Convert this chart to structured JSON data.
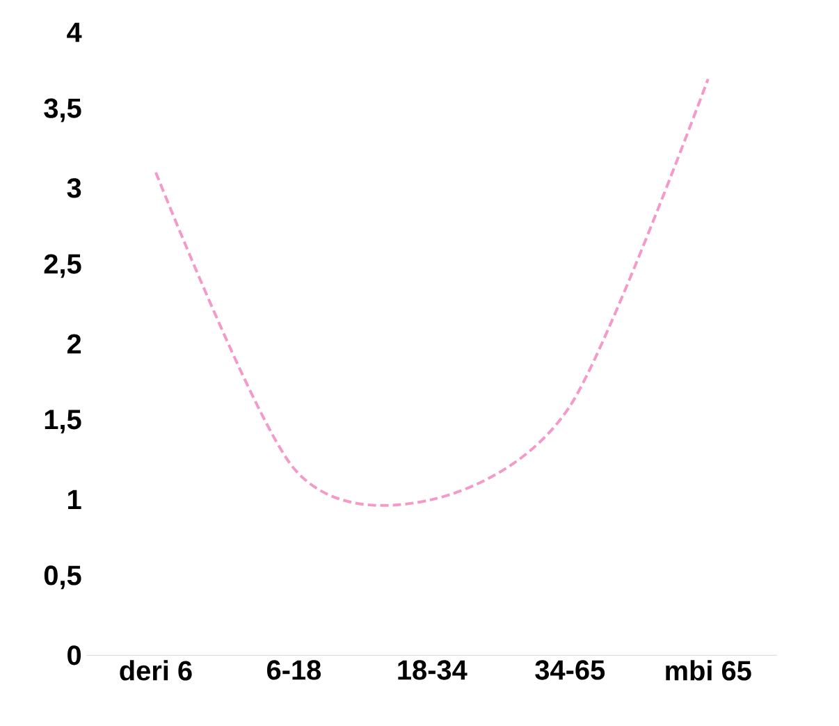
{
  "chart_data": {
    "type": "line",
    "categories": [
      "deri **6**",
      "6-18",
      "18-34",
      "34-65",
      "mbi **65**"
    ],
    "series": [
      {
        "color": "#f49ac9",
        "values": [
          3.1,
          1.2,
          1.0,
          1.6,
          3.7
        ]
      }
    ],
    "line_style": "dashed",
    "marker": "none",
    "ylim": [
      0,
      4
    ],
    "yticks": [
      0,
      {
        "value": 0.5,
        "label": "0,5"
      },
      1,
      {
        "value": 1.5,
        "label": "1,5"
      },
      2,
      {
        "value": 2.5,
        "label": "2,5"
      },
      3,
      {
        "value": 3.5,
        "label": "3,5"
      },
      4
    ]
  }
}
